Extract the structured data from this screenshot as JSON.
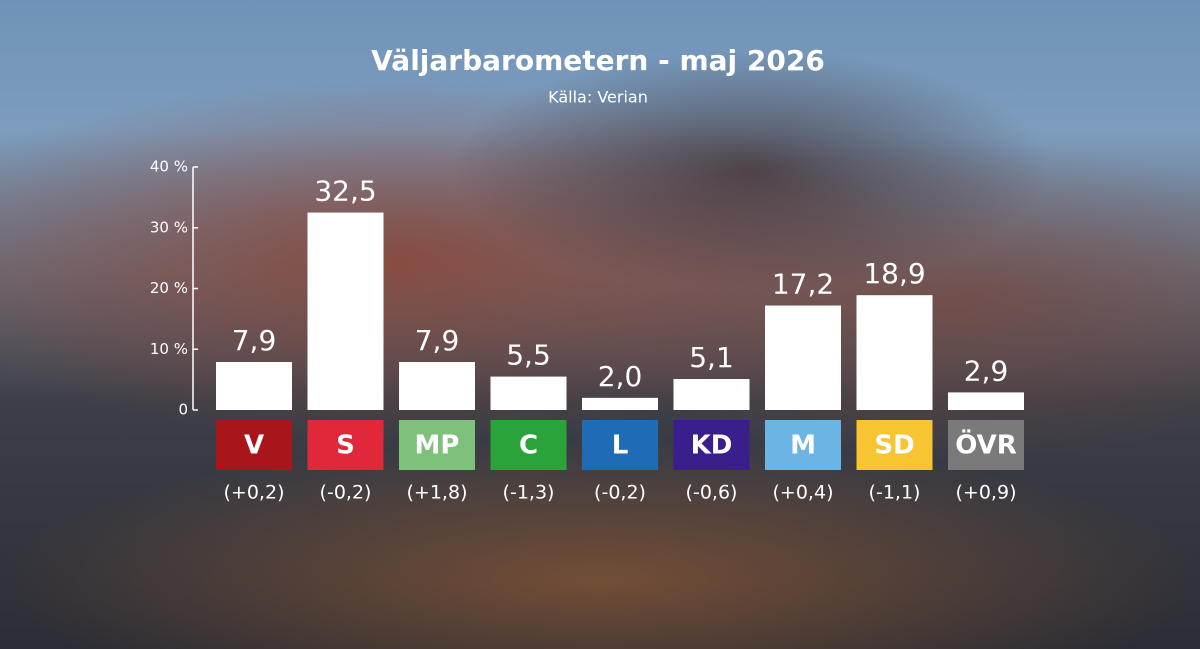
{
  "chart_data": {
    "type": "bar",
    "title": "Väljarbarometern - maj 2026",
    "subtitle": "Källa: Verian",
    "categories": [
      "V",
      "S",
      "MP",
      "C",
      "L",
      "KD",
      "M",
      "SD",
      "ÖVR"
    ],
    "category_colors": [
      "#a8161c",
      "#e0283a",
      "#7dc17a",
      "#2aa33b",
      "#1f6bb5",
      "#3a1e8c",
      "#6cb4e4",
      "#f7c532",
      "#7a7a7a"
    ],
    "values": [
      7.9,
      32.5,
      7.9,
      5.5,
      2.0,
      5.1,
      17.2,
      18.9,
      2.9
    ],
    "value_labels": [
      "7,9",
      "32,5",
      "7,9",
      "5,5",
      "2,0",
      "5,1",
      "17,2",
      "18,9",
      "2,9"
    ],
    "changes": [
      "(+0,2)",
      "(-0,2)",
      "(+1,8)",
      "(-1,3)",
      "(-0,2)",
      "(-0,6)",
      "(+0,4)",
      "(-1,1)",
      "(+0,9)"
    ],
    "color": "#ffffff",
    "ylim": [
      0,
      40
    ],
    "yticks": [
      0,
      {
        "value": 10,
        "label": "10 %"
      },
      {
        "value": 20,
        "label": "20 %"
      },
      {
        "value": 30,
        "label": "30 %"
      },
      {
        "value": 40,
        "label": "40 %"
      }
    ]
  }
}
